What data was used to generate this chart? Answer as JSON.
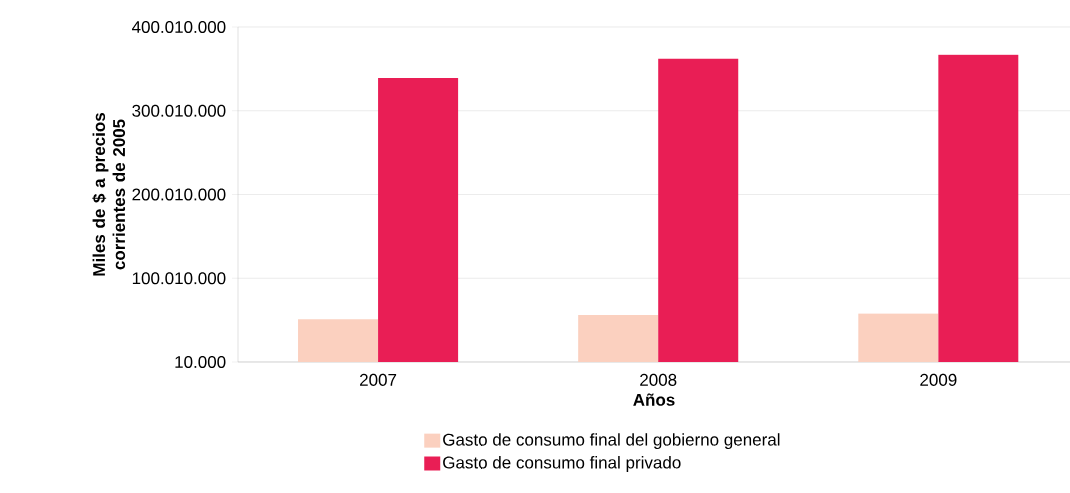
{
  "chart_data": {
    "type": "bar",
    "xlabel": "Años",
    "ylabel": "Miles de $ a precios corrientes de 2005",
    "categories": [
      "2007",
      "2008",
      "2009"
    ],
    "series": [
      {
        "name": "Gasto de consumo final del gobierno general",
        "color": "#fbd0bf",
        "values": [
          51000000,
          56000000,
          58000000
        ]
      },
      {
        "name": "Gasto de consumo final privado",
        "color": "#e91e55",
        "values": [
          339000000,
          362000000,
          367000000
        ]
      }
    ],
    "ylim": [
      10000,
      400010000
    ],
    "yticks": [
      {
        "value": 10000,
        "label": "10.000"
      },
      {
        "value": 100010000,
        "label": "100.010.000"
      },
      {
        "value": 200010000,
        "label": "200.010.000"
      },
      {
        "value": 300010000,
        "label": "300.010.000"
      },
      {
        "value": 400010000,
        "label": "400.010.000"
      }
    ],
    "grid": "y",
    "legend": "bottom"
  }
}
